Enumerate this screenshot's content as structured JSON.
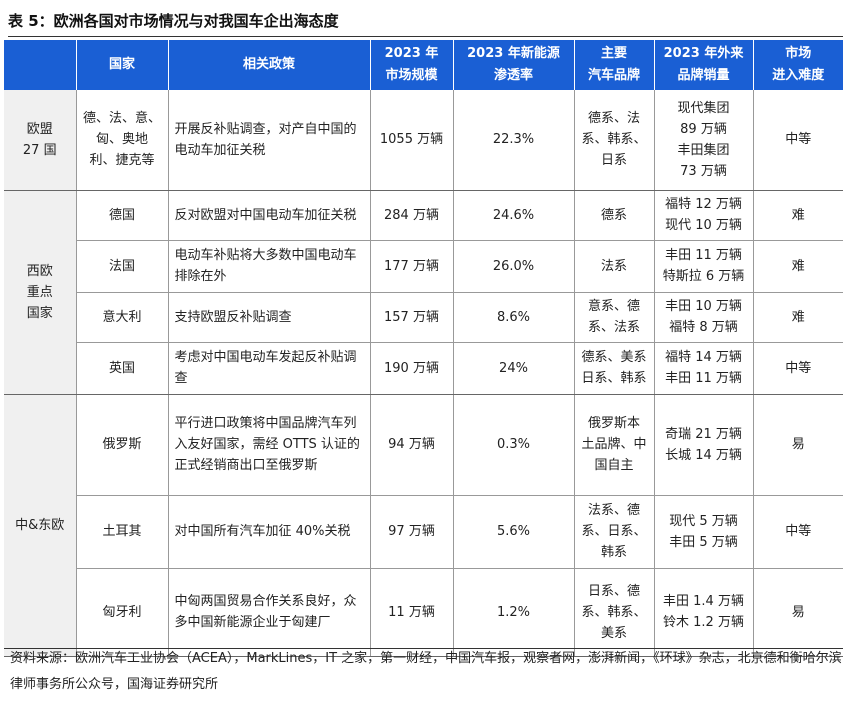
{
  "title": "表 5：欧洲各国对市场情况与对我国车企出海态度",
  "headers": [
    [
      "",
      ""
    ],
    [
      "国家",
      ""
    ],
    [
      "相关政策",
      ""
    ],
    [
      "2023 年",
      "市场规模"
    ],
    [
      "2023 年新能源",
      "渗透率"
    ],
    [
      "主要",
      "汽车品牌"
    ],
    [
      "2023 年外来",
      "品牌销量"
    ],
    [
      "市场",
      "进入难度"
    ]
  ],
  "groups": [
    {
      "name": [
        "欧盟",
        "27 国"
      ],
      "rows": [
        {
          "country": [
            "德、法、意、",
            "匈、奥地",
            "利、捷克等"
          ],
          "policy": "开展反补贴调查，对产自中国的电动车加征关税",
          "market": "1055 万辆",
          "penetration": "22.3%",
          "brands": [
            "德系、法",
            "系、韩系、",
            "日系"
          ],
          "foreign_sales": [
            "现代集团",
            "89 万辆",
            "丰田集团",
            "73 万辆"
          ],
          "difficulty": "中等"
        }
      ]
    },
    {
      "name": [
        "西欧",
        "重点",
        "国家"
      ],
      "rows": [
        {
          "country": [
            "德国"
          ],
          "policy": "反对欧盟对中国电动车加征关税",
          "market": "284 万辆",
          "penetration": "24.6%",
          "brands": [
            "德系"
          ],
          "foreign_sales": [
            "福特 12 万辆",
            "现代 10 万辆"
          ],
          "difficulty": "难"
        },
        {
          "country": [
            "法国"
          ],
          "policy": "电动车补贴将大多数中国电动车排除在外",
          "market": "177 万辆",
          "penetration": "26.0%",
          "brands": [
            "法系"
          ],
          "foreign_sales": [
            "丰田 11 万辆",
            "特斯拉 6 万辆"
          ],
          "difficulty": "难"
        },
        {
          "country": [
            "意大利"
          ],
          "policy": "支持欧盟反补贴调查",
          "market": "157 万辆",
          "penetration": "8.6%",
          "brands": [
            "意系、德",
            "系、法系"
          ],
          "foreign_sales": [
            "丰田 10 万辆",
            "福特 8 万辆"
          ],
          "difficulty": "难"
        },
        {
          "country": [
            "英国"
          ],
          "policy": "考虑对中国电动车发起反补贴调查",
          "market": "190 万辆",
          "penetration": "24%",
          "brands": [
            "德系、美系",
            "日系、韩系"
          ],
          "foreign_sales": [
            "福特 14 万辆",
            "丰田 11 万辆"
          ],
          "difficulty": "中等"
        }
      ]
    },
    {
      "name": [
        "中&东欧"
      ],
      "rows": [
        {
          "country": [
            "俄罗斯"
          ],
          "policy": "平行进口政策将中国品牌汽车列入友好国家，需经 OTTS 认证的正式经销商出口至俄罗斯",
          "market": "94 万辆",
          "penetration": "0.3%",
          "brands": [
            "俄罗斯本",
            "土品牌、中",
            "国自主"
          ],
          "foreign_sales": [
            "奇瑞 21 万辆",
            "长城 14 万辆"
          ],
          "difficulty": "易"
        },
        {
          "country": [
            "土耳其"
          ],
          "policy": "对中国所有汽车加征 40%关税",
          "market": "97 万辆",
          "penetration": "5.6%",
          "brands": [
            "法系、德",
            "系、日系、",
            "韩系"
          ],
          "foreign_sales": [
            "现代 5 万辆",
            "丰田 5 万辆"
          ],
          "difficulty": "中等"
        },
        {
          "country": [
            "匈牙利"
          ],
          "policy": "中匈两国贸易合作关系良好，众多中国新能源企业于匈建厂",
          "market": "11 万辆",
          "penetration": "1.2%",
          "brands": [
            "日系、德",
            "系、韩系、",
            "美系"
          ],
          "foreign_sales": [
            "丰田 1.4 万辆",
            "铃木 1.2 万辆"
          ],
          "difficulty": "易"
        }
      ]
    }
  ],
  "footer": "资料来源：欧洲汽车工业协会（ACEA），MarkLines，IT 之家，第一财经，中国汽车报，观察者网，澎湃新闻，《环球》杂志，北京德和衡哈尔滨律师事务所公众号，国海证券研究所"
}
